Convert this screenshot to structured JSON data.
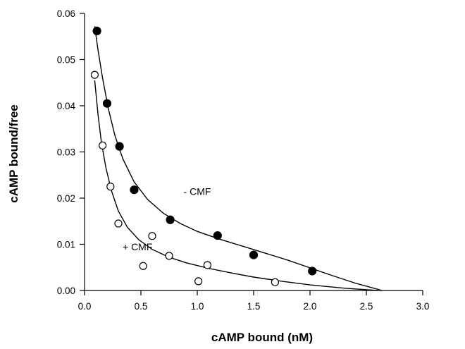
{
  "chart_data": {
    "type": "scatter",
    "title": "",
    "xlabel": "cAMP bound (nM)",
    "ylabel": "cAMP bound/free",
    "xlim": [
      0.0,
      3.0
    ],
    "ylim": [
      0.0,
      0.06
    ],
    "x_ticks": [
      "0.0",
      "0.5",
      "1.0",
      "1.5",
      "2.0",
      "2.5",
      "3.0"
    ],
    "y_ticks": [
      "0.00",
      "0.01",
      "0.02",
      "0.03",
      "0.04",
      "0.05",
      "0.06"
    ],
    "grid": false,
    "legend": "none",
    "annotations": [
      {
        "text": "- CMF",
        "series": "minus"
      },
      {
        "text": "+ CMF",
        "series": "plus"
      }
    ],
    "series": [
      {
        "key": "minus",
        "marker": "filled-circle",
        "color": "#000000",
        "points": [
          {
            "x": 0.11,
            "y": 0.0562
          },
          {
            "x": 0.2,
            "y": 0.0405
          },
          {
            "x": 0.31,
            "y": 0.0312
          },
          {
            "x": 0.44,
            "y": 0.0218
          },
          {
            "x": 0.76,
            "y": 0.0153
          },
          {
            "x": 1.18,
            "y": 0.0119
          },
          {
            "x": 1.5,
            "y": 0.0077
          },
          {
            "x": 2.02,
            "y": 0.0042
          }
        ],
        "curve": [
          {
            "x": 0.09,
            "y": 0.0572
          },
          {
            "x": 0.12,
            "y": 0.052
          },
          {
            "x": 0.16,
            "y": 0.046
          },
          {
            "x": 0.21,
            "y": 0.0395
          },
          {
            "x": 0.27,
            "y": 0.0335
          },
          {
            "x": 0.34,
            "y": 0.0285
          },
          {
            "x": 0.44,
            "y": 0.0235
          },
          {
            "x": 0.56,
            "y": 0.0197
          },
          {
            "x": 0.7,
            "y": 0.0167
          },
          {
            "x": 0.85,
            "y": 0.0145
          },
          {
            "x": 1.0,
            "y": 0.0128
          },
          {
            "x": 1.2,
            "y": 0.0111
          },
          {
            "x": 1.4,
            "y": 0.0096
          },
          {
            "x": 1.6,
            "y": 0.0081
          },
          {
            "x": 1.8,
            "y": 0.0066
          },
          {
            "x": 2.0,
            "y": 0.0049
          },
          {
            "x": 2.2,
            "y": 0.0032
          },
          {
            "x": 2.4,
            "y": 0.0016
          },
          {
            "x": 2.64,
            "y": 0.0
          }
        ]
      },
      {
        "key": "plus",
        "marker": "open-circle",
        "color": "#000000",
        "points": [
          {
            "x": 0.09,
            "y": 0.0467
          },
          {
            "x": 0.16,
            "y": 0.0314
          },
          {
            "x": 0.23,
            "y": 0.0225
          },
          {
            "x": 0.3,
            "y": 0.0145
          },
          {
            "x": 0.52,
            "y": 0.0053
          },
          {
            "x": 0.6,
            "y": 0.0118
          },
          {
            "x": 0.75,
            "y": 0.0075
          },
          {
            "x": 1.01,
            "y": 0.002
          },
          {
            "x": 1.09,
            "y": 0.0055
          },
          {
            "x": 1.69,
            "y": 0.0018
          }
        ],
        "curve": [
          {
            "x": 0.09,
            "y": 0.0455
          },
          {
            "x": 0.12,
            "y": 0.038
          },
          {
            "x": 0.15,
            "y": 0.032
          },
          {
            "x": 0.19,
            "y": 0.0265
          },
          {
            "x": 0.24,
            "y": 0.0215
          },
          {
            "x": 0.3,
            "y": 0.0172
          },
          {
            "x": 0.38,
            "y": 0.0137
          },
          {
            "x": 0.48,
            "y": 0.011
          },
          {
            "x": 0.6,
            "y": 0.0089
          },
          {
            "x": 0.75,
            "y": 0.0072
          },
          {
            "x": 0.9,
            "y": 0.006
          },
          {
            "x": 1.1,
            "y": 0.0048
          },
          {
            "x": 1.3,
            "y": 0.0038
          },
          {
            "x": 1.5,
            "y": 0.0029
          },
          {
            "x": 1.75,
            "y": 0.002
          },
          {
            "x": 2.0,
            "y": 0.0012
          },
          {
            "x": 2.3,
            "y": 0.0005
          },
          {
            "x": 2.6,
            "y": 0.0
          }
        ]
      }
    ]
  }
}
